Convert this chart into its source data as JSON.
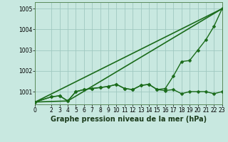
{
  "background_color": "#c8e8e0",
  "grid_color": "#a0c8c0",
  "line_color": "#1a6b1a",
  "title": "Graphe pression niveau de la mer (hPa)",
  "xlim": [
    0,
    23
  ],
  "ylim": [
    1000.4,
    1005.3
  ],
  "yticks": [
    1001,
    1002,
    1003,
    1004,
    1005
  ],
  "xticks": [
    0,
    2,
    3,
    4,
    5,
    6,
    7,
    8,
    9,
    10,
    11,
    12,
    13,
    14,
    15,
    16,
    17,
    18,
    19,
    20,
    21,
    22,
    23
  ],
  "lines": [
    {
      "x": [
        0,
        2,
        3,
        4,
        5,
        6,
        7,
        8,
        9,
        10,
        11,
        12,
        13,
        14,
        15,
        16,
        17,
        18,
        19,
        20,
        21,
        22,
        23
      ],
      "y": [
        1000.5,
        1000.75,
        1000.8,
        1000.55,
        1001.0,
        1001.1,
        1001.15,
        1001.2,
        1001.25,
        1001.35,
        1001.15,
        1001.1,
        1001.3,
        1001.35,
        1001.1,
        1001.05,
        1001.1,
        1000.9,
        1001.0,
        1001.0,
        1001.0,
        1000.9,
        1001.0
      ],
      "marker": "D",
      "markersize": 2.5,
      "linewidth": 1.0
    },
    {
      "x": [
        0,
        2,
        3,
        4,
        5,
        6,
        7,
        8,
        9,
        10,
        11,
        12,
        13,
        14,
        15,
        16,
        17,
        18,
        19,
        20,
        21,
        22,
        23
      ],
      "y": [
        1000.5,
        1000.75,
        1000.8,
        1000.55,
        1001.0,
        1001.1,
        1001.15,
        1001.2,
        1001.25,
        1001.35,
        1001.15,
        1001.1,
        1001.3,
        1001.35,
        1001.1,
        1001.15,
        1001.75,
        1002.45,
        1002.5,
        1003.0,
        1003.5,
        1004.15,
        1005.0
      ],
      "marker": "D",
      "markersize": 2.5,
      "linewidth": 1.0
    },
    {
      "x": [
        0,
        23
      ],
      "y": [
        1000.5,
        1005.0
      ],
      "marker": null,
      "markersize": 0,
      "linewidth": 1.2
    },
    {
      "x": [
        0,
        4,
        23
      ],
      "y": [
        1000.5,
        1000.55,
        1005.0
      ],
      "marker": null,
      "markersize": 0,
      "linewidth": 1.2
    }
  ],
  "title_fontsize": 7,
  "tick_fontsize": 5.5,
  "ylabel_fontsize": 6
}
